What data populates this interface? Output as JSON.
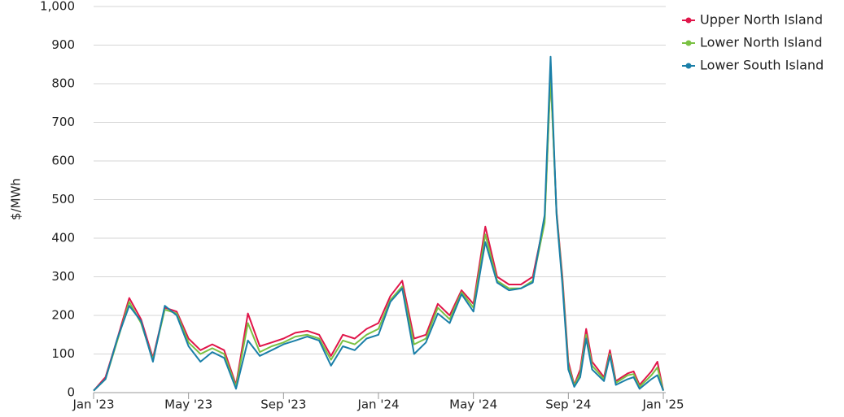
{
  "chart_data": {
    "type": "line",
    "y_label": "$/MWh",
    "x": [
      0,
      0.5,
      1,
      1.5,
      2,
      2.5,
      3,
      3.5,
      4,
      4.5,
      5,
      5.5,
      6,
      6.5,
      7,
      7.5,
      8,
      8.5,
      9,
      9.5,
      10,
      10.5,
      11,
      11.5,
      12,
      12.5,
      13,
      13.5,
      14,
      14.5,
      15,
      15.5,
      16,
      16.5,
      17,
      17.5,
      18,
      18.5,
      19,
      19.25,
      19.5,
      19.75,
      20,
      20.25,
      20.5,
      20.75,
      21,
      21.5,
      21.75,
      22,
      22.5,
      22.75,
      23,
      23.5,
      23.75,
      24
    ],
    "series": [
      {
        "name": "Upper North Island",
        "color": "#e0164a",
        "values": [
          5,
          40,
          140,
          245,
          190,
          90,
          220,
          210,
          140,
          110,
          125,
          110,
          20,
          205,
          120,
          130,
          140,
          155,
          160,
          150,
          95,
          150,
          140,
          165,
          180,
          250,
          290,
          140,
          150,
          230,
          200,
          265,
          230,
          430,
          300,
          280,
          280,
          300,
          450,
          825,
          470,
          300,
          80,
          20,
          60,
          165,
          80,
          40,
          110,
          30,
          50,
          55,
          20,
          55,
          80,
          5
        ]
      },
      {
        "name": "Lower North Island",
        "color": "#7ac143",
        "values": [
          5,
          35,
          135,
          235,
          180,
          85,
          215,
          205,
          130,
          100,
          115,
          100,
          15,
          180,
          105,
          120,
          130,
          145,
          150,
          140,
          85,
          135,
          125,
          150,
          165,
          240,
          275,
          125,
          140,
          220,
          190,
          260,
          220,
          410,
          290,
          270,
          270,
          290,
          440,
          820,
          465,
          290,
          70,
          18,
          50,
          150,
          70,
          35,
          100,
          25,
          45,
          48,
          15,
          45,
          65,
          5
        ]
      },
      {
        "name": "Lower South Island",
        "color": "#1a7fa8",
        "values": [
          5,
          35,
          140,
          225,
          185,
          80,
          225,
          200,
          120,
          80,
          105,
          90,
          10,
          135,
          95,
          110,
          125,
          135,
          145,
          135,
          70,
          120,
          110,
          140,
          150,
          235,
          270,
          100,
          130,
          205,
          180,
          255,
          210,
          390,
          285,
          265,
          270,
          285,
          460,
          870,
          460,
          280,
          60,
          15,
          40,
          140,
          60,
          30,
          95,
          20,
          35,
          40,
          10,
          35,
          45,
          5
        ]
      }
    ],
    "xlim": [
      0,
      24
    ],
    "xticks": [
      {
        "value": 0,
        "label": "Jan '23"
      },
      {
        "value": 4,
        "label": "May '23"
      },
      {
        "value": 8,
        "label": "Sep '23"
      },
      {
        "value": 12,
        "label": "Jan '24"
      },
      {
        "value": 16,
        "label": "May '24"
      },
      {
        "value": 20,
        "label": "Sep '24"
      },
      {
        "value": 24,
        "label": "Jan '25"
      }
    ],
    "ylim": [
      0,
      1000
    ],
    "yticks": [
      0,
      100,
      200,
      300,
      400,
      500,
      600,
      700,
      800,
      900,
      {
        "value": 1000,
        "label": "1,000"
      }
    ],
    "grid": true,
    "legend": "top-right"
  }
}
